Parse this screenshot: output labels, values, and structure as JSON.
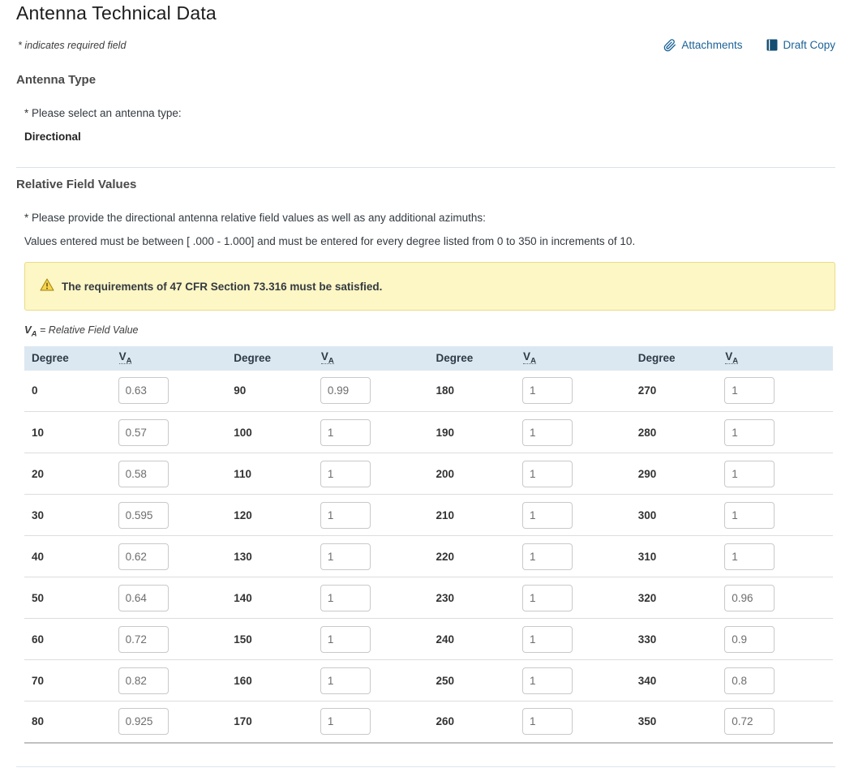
{
  "page": {
    "title": "Antenna Technical Data",
    "required_note": "* indicates required field"
  },
  "toolbar": {
    "attachments_label": "Attachments",
    "draft_copy_label": "Draft Copy"
  },
  "antenna_type_section": {
    "heading": "Antenna Type",
    "prompt": "* Please select an antenna type:",
    "selected_value": "Directional"
  },
  "relative_field_section": {
    "heading": "Relative Field Values",
    "prompt": "* Please provide the directional antenna relative field values as well as any additional azimuths:",
    "instructions": "Values entered must be between [ .000 - 1.000] and must be entered for every degree listed from 0 to 350 in increments of 10.",
    "warning": "The requirements of 47 CFR Section 73.316 must be satisfied.",
    "legend": {
      "v": "V",
      "sub": "A",
      "rest": " = Relative Field Value"
    }
  },
  "table": {
    "header": {
      "degree": "Degree",
      "va_main": "V",
      "va_sub": "A"
    },
    "rows": [
      [
        {
          "degree": "0",
          "value": "0.63"
        },
        {
          "degree": "90",
          "value": "0.99"
        },
        {
          "degree": "180",
          "value": "1"
        },
        {
          "degree": "270",
          "value": "1"
        }
      ],
      [
        {
          "degree": "10",
          "value": "0.57"
        },
        {
          "degree": "100",
          "value": "1"
        },
        {
          "degree": "190",
          "value": "1"
        },
        {
          "degree": "280",
          "value": "1"
        }
      ],
      [
        {
          "degree": "20",
          "value": "0.58"
        },
        {
          "degree": "110",
          "value": "1"
        },
        {
          "degree": "200",
          "value": "1"
        },
        {
          "degree": "290",
          "value": "1"
        }
      ],
      [
        {
          "degree": "30",
          "value": "0.595"
        },
        {
          "degree": "120",
          "value": "1"
        },
        {
          "degree": "210",
          "value": "1"
        },
        {
          "degree": "300",
          "value": "1"
        }
      ],
      [
        {
          "degree": "40",
          "value": "0.62"
        },
        {
          "degree": "130",
          "value": "1"
        },
        {
          "degree": "220",
          "value": "1"
        },
        {
          "degree": "310",
          "value": "1"
        }
      ],
      [
        {
          "degree": "50",
          "value": "0.64"
        },
        {
          "degree": "140",
          "value": "1"
        },
        {
          "degree": "230",
          "value": "1"
        },
        {
          "degree": "320",
          "value": "0.96"
        }
      ],
      [
        {
          "degree": "60",
          "value": "0.72"
        },
        {
          "degree": "150",
          "value": "1"
        },
        {
          "degree": "240",
          "value": "1"
        },
        {
          "degree": "330",
          "value": "0.9"
        }
      ],
      [
        {
          "degree": "70",
          "value": "0.82"
        },
        {
          "degree": "160",
          "value": "1"
        },
        {
          "degree": "250",
          "value": "1"
        },
        {
          "degree": "340",
          "value": "0.8"
        }
      ],
      [
        {
          "degree": "80",
          "value": "0.925"
        },
        {
          "degree": "170",
          "value": "1"
        },
        {
          "degree": "260",
          "value": "1"
        },
        {
          "degree": "350",
          "value": "0.72"
        }
      ]
    ]
  },
  "colors": {
    "link_blue": "#1b6397",
    "table_header_bg": "#dce8f1",
    "warning_bg": "#fdf6c5",
    "warning_border": "#e9dd85",
    "warning_icon": "#f9d34c"
  }
}
